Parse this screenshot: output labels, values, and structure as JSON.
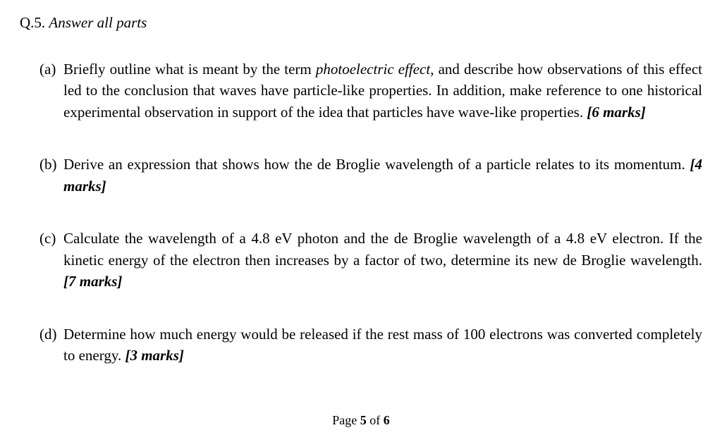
{
  "text_color": "#000000",
  "background_color": "#ffffff",
  "font_family": "Times New Roman",
  "base_fontsize_pt": 16,
  "header": {
    "number": "Q.5.",
    "instruction": "Answer all parts"
  },
  "parts": [
    {
      "label": "(a)",
      "segments": [
        {
          "t": "Briefly outline what is meant by the term "
        },
        {
          "t": "photoelectric effect",
          "italic": true
        },
        {
          "t": ", and describe how observations of this effect led to the conclusion that waves have particle-like properties.  In addition, make reference to one historical experimental observation in support of the idea that particles have wave-like properties. "
        }
      ],
      "marks": "[6 marks]"
    },
    {
      "label": "(b)",
      "segments": [
        {
          "t": "Derive an expression that shows how the de Broglie wavelength of a particle relates to its momentum. "
        }
      ],
      "marks": "[4 marks]"
    },
    {
      "label": "(c)",
      "segments": [
        {
          "t": "Calculate the wavelength of a 4.8 eV photon and the de Broglie wavelength of a 4.8 eV electron. If the kinetic energy of the electron then increases by a factor of two, determine its new de Broglie wavelength.  "
        }
      ],
      "marks": "[7 marks]"
    },
    {
      "label": "(d)",
      "segments": [
        {
          "t": "Determine how much energy would be released if the rest mass of 100 electrons was converted completely to energy.  "
        }
      ],
      "marks": "[3 marks]"
    }
  ],
  "footer": {
    "prefix": "Page ",
    "current": "5",
    "middle": " of ",
    "total": "6"
  }
}
